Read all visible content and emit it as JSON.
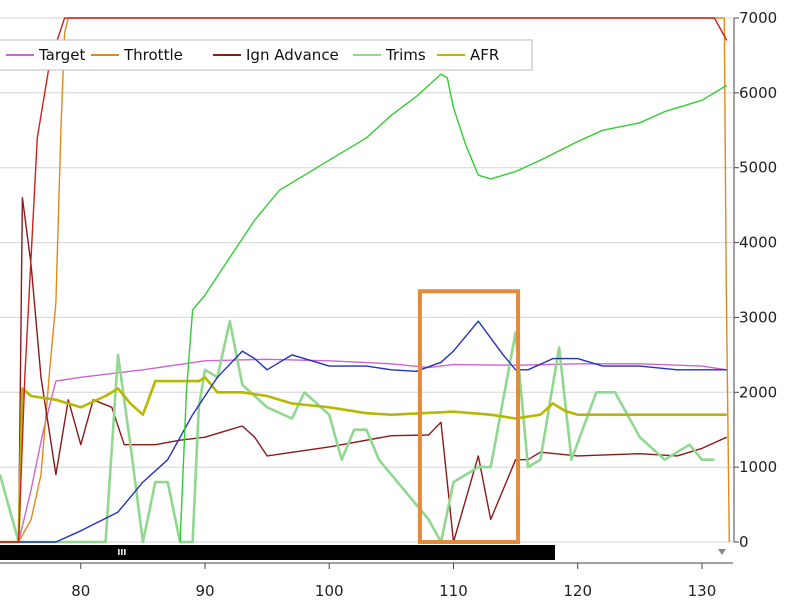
{
  "chart_data": {
    "type": "line",
    "xlim": [
      73.5,
      132.5
    ],
    "ylim": [
      0,
      7000
    ],
    "x_ticks": [
      "80",
      "90",
      "100",
      "110",
      "120",
      "130"
    ],
    "x_tick_values": [
      80,
      90,
      100,
      110,
      120,
      130
    ],
    "y_ticks": [
      "0",
      "1000",
      "2000",
      "3000",
      "4000",
      "5000",
      "6000",
      "7000"
    ],
    "y_tick_values": [
      0,
      1000,
      2000,
      3000,
      4000,
      5000,
      6000,
      7000
    ],
    "grid": "horizontal",
    "legend": "top",
    "legend_entries": [
      "Target",
      "Throttle",
      "Ign Advance",
      "Trims",
      "AFR"
    ],
    "series": [
      {
        "name": "Target",
        "color": "#cc66cc",
        "points": [
          [
            73.5,
            0
          ],
          [
            75,
            0
          ],
          [
            76,
            700
          ],
          [
            77,
            1500
          ],
          [
            78,
            2150
          ],
          [
            80,
            2200
          ],
          [
            85,
            2300
          ],
          [
            90,
            2420
          ],
          [
            95,
            2440
          ],
          [
            100,
            2420
          ],
          [
            105,
            2380
          ],
          [
            108,
            2330
          ],
          [
            110,
            2370
          ],
          [
            115,
            2360
          ],
          [
            120,
            2380
          ],
          [
            125,
            2380
          ],
          [
            130,
            2350
          ],
          [
            132,
            2300
          ]
        ]
      },
      {
        "name": "Throttle",
        "color": "#e08a1e",
        "points": [
          [
            73.5,
            0
          ],
          [
            75,
            0
          ],
          [
            76,
            300
          ],
          [
            76.8,
            900
          ],
          [
            77.5,
            2300
          ],
          [
            78,
            3200
          ],
          [
            78.4,
            5500
          ],
          [
            78.7,
            6800
          ],
          [
            79,
            7000
          ],
          [
            108.5,
            7000
          ],
          [
            108.6,
            7000
          ],
          [
            131.8,
            7000
          ],
          [
            131.95,
            3500
          ],
          [
            132.2,
            0
          ]
        ]
      },
      {
        "name": "Ign Advance",
        "color": "#8b1a1a",
        "points": [
          [
            73.5,
            0
          ],
          [
            75,
            0
          ],
          [
            75.3,
            4600
          ],
          [
            76,
            3700
          ],
          [
            76.8,
            2200
          ],
          [
            78,
            900
          ],
          [
            79,
            1900
          ],
          [
            80,
            1300
          ],
          [
            81,
            1900
          ],
          [
            82.5,
            1800
          ],
          [
            83.5,
            1300
          ],
          [
            86,
            1300
          ],
          [
            88,
            1360
          ],
          [
            90,
            1400
          ],
          [
            92,
            1500
          ],
          [
            93,
            1550
          ],
          [
            94,
            1400
          ],
          [
            95,
            1150
          ],
          [
            100,
            1270
          ],
          [
            105,
            1420
          ],
          [
            108,
            1430
          ],
          [
            109,
            1600
          ],
          [
            110,
            0
          ],
          [
            112,
            1150
          ],
          [
            113,
            300
          ],
          [
            115,
            1100
          ],
          [
            116,
            1100
          ],
          [
            117,
            1200
          ],
          [
            120,
            1150
          ],
          [
            125,
            1180
          ],
          [
            128,
            1150
          ],
          [
            130,
            1250
          ],
          [
            132,
            1400
          ]
        ]
      },
      {
        "name": "Trims",
        "color": "#90d890",
        "points": [
          [
            73.5,
            900
          ],
          [
            75,
            0
          ],
          [
            75.5,
            0
          ],
          [
            82,
            0
          ],
          [
            83,
            2500
          ],
          [
            84,
            1300
          ],
          [
            85,
            0
          ],
          [
            86,
            800
          ],
          [
            87,
            800
          ],
          [
            88,
            0
          ],
          [
            89,
            0
          ],
          [
            89.5,
            1800
          ],
          [
            90,
            2300
          ],
          [
            91,
            2200
          ],
          [
            92,
            2950
          ],
          [
            93,
            2100
          ],
          [
            95,
            1800
          ],
          [
            97,
            1650
          ],
          [
            98,
            2000
          ],
          [
            100,
            1700
          ],
          [
            101,
            1100
          ],
          [
            102,
            1500
          ],
          [
            103,
            1500
          ],
          [
            104,
            1100
          ],
          [
            106,
            700
          ],
          [
            108,
            300
          ],
          [
            109,
            0
          ],
          [
            110,
            800
          ],
          [
            112,
            1000
          ],
          [
            113,
            1000
          ],
          [
            115,
            2800
          ],
          [
            116,
            1000
          ],
          [
            117,
            1100
          ],
          [
            118.5,
            2600
          ],
          [
            119.5,
            1100
          ],
          [
            121.5,
            2000
          ],
          [
            123,
            2000
          ],
          [
            125,
            1400
          ],
          [
            127,
            1100
          ],
          [
            129,
            1300
          ],
          [
            130,
            1100
          ],
          [
            131,
            1100
          ]
        ]
      },
      {
        "name": "AFR",
        "color": "#b8b800",
        "points": [
          [
            73.5,
            0
          ],
          [
            75,
            0
          ],
          [
            75.3,
            2050
          ],
          [
            76,
            1950
          ],
          [
            78,
            1900
          ],
          [
            80,
            1800
          ],
          [
            82,
            1950
          ],
          [
            83,
            2050
          ],
          [
            84,
            1850
          ],
          [
            85,
            1700
          ],
          [
            86,
            2150
          ],
          [
            88,
            2150
          ],
          [
            89.5,
            2150
          ],
          [
            90,
            2200
          ],
          [
            91,
            2000
          ],
          [
            93,
            2000
          ],
          [
            95,
            1950
          ],
          [
            97,
            1850
          ],
          [
            100,
            1800
          ],
          [
            103,
            1720
          ],
          [
            105,
            1700
          ],
          [
            110,
            1740
          ],
          [
            113,
            1700
          ],
          [
            115,
            1650
          ],
          [
            117,
            1700
          ],
          [
            118,
            1850
          ],
          [
            119,
            1750
          ],
          [
            120,
            1700
          ],
          [
            125,
            1700
          ],
          [
            130,
            1700
          ],
          [
            132,
            1700
          ]
        ]
      },
      {
        "color": "#2233bb",
        "points": [
          [
            73.5,
            0
          ],
          [
            76,
            0
          ],
          [
            78,
            0
          ],
          [
            80,
            150
          ],
          [
            83,
            400
          ],
          [
            85,
            800
          ],
          [
            87,
            1100
          ],
          [
            89,
            1700
          ],
          [
            91,
            2200
          ],
          [
            93,
            2550
          ],
          [
            94,
            2450
          ],
          [
            95,
            2300
          ],
          [
            96,
            2400
          ],
          [
            97,
            2500
          ],
          [
            98,
            2450
          ],
          [
            100,
            2350
          ],
          [
            103,
            2350
          ],
          [
            105,
            2300
          ],
          [
            107,
            2280
          ],
          [
            109,
            2400
          ],
          [
            110,
            2550
          ],
          [
            112,
            2950
          ],
          [
            114,
            2500
          ],
          [
            115,
            2300
          ],
          [
            116,
            2300
          ],
          [
            118,
            2450
          ],
          [
            120,
            2450
          ],
          [
            122,
            2350
          ],
          [
            125,
            2350
          ],
          [
            128,
            2300
          ],
          [
            130,
            2300
          ],
          [
            132,
            2300
          ]
        ]
      },
      {
        "color": "#cc2222",
        "points": [
          [
            73.5,
            0
          ],
          [
            75,
            0
          ],
          [
            75.5,
            2200
          ],
          [
            76.5,
            5400
          ],
          [
            77.5,
            6400
          ],
          [
            78.7,
            7000
          ],
          [
            79,
            7000
          ],
          [
            131,
            7000
          ],
          [
            132,
            6700
          ]
        ]
      },
      {
        "color": "#33cc33",
        "points": [
          [
            88,
            0
          ],
          [
            88.5,
            2000
          ],
          [
            89,
            3100
          ],
          [
            90,
            3300
          ],
          [
            92,
            3800
          ],
          [
            94,
            4300
          ],
          [
            96,
            4700
          ],
          [
            97,
            4800
          ],
          [
            99,
            5000
          ],
          [
            100,
            5100
          ],
          [
            103,
            5400
          ],
          [
            105,
            5700
          ],
          [
            107,
            5950
          ],
          [
            109,
            6250
          ],
          [
            109.5,
            6200
          ],
          [
            110,
            5800
          ],
          [
            111,
            5300
          ],
          [
            112,
            4900
          ],
          [
            113,
            4850
          ],
          [
            115,
            4950
          ],
          [
            117,
            5100
          ],
          [
            120,
            5350
          ],
          [
            122,
            5500
          ],
          [
            125,
            5600
          ],
          [
            127,
            5750
          ],
          [
            130,
            5900
          ],
          [
            132,
            6100
          ]
        ]
      }
    ],
    "highlight_box": {
      "x_range": [
        107.3,
        115.2
      ],
      "y_range": [
        0,
        3350
      ],
      "color": "#e48a3c"
    },
    "scrollbar": {
      "position": 0.22
    }
  }
}
